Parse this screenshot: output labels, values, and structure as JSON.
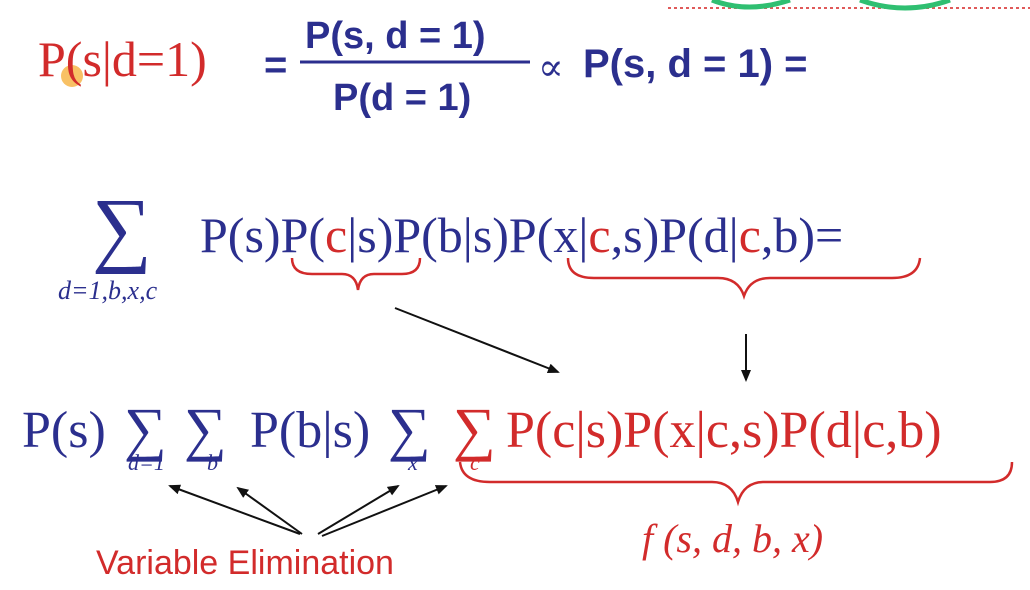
{
  "colors": {
    "blue": "#2b2f8e",
    "red": "#d22b2b",
    "cursor": "#f5a623",
    "corner": "#2fbf71"
  },
  "line1": {
    "lhs": "P(s|d=1)",
    "eq": "=",
    "numerator": "P(s, d = 1)",
    "denominator": "P(d = 1)",
    "propto": "∝",
    "rhs": "P(s, d = 1) ="
  },
  "line2": {
    "sum": "∑",
    "sum_subscript": "d=1,b,x,c",
    "terms": {
      "a": "P(s)P(",
      "b": "c",
      "c": "|s)P(b|s)P(x|",
      "d": "c",
      "e": ",s)P(d|",
      "f": "c",
      "g": ",b)="
    }
  },
  "line3": {
    "ps": "P(s)",
    "sum": "∑",
    "sub_d": "d=1",
    "sub_b": "b",
    "pbs": "P(b|s)",
    "sub_x": "x",
    "sub_c": "c",
    "red_product": "P(c|s)P(x|c,s)P(d|c,b)"
  },
  "labels": {
    "variable_elimination": "Variable Elimination",
    "function": "f (s, d, b, x)"
  }
}
